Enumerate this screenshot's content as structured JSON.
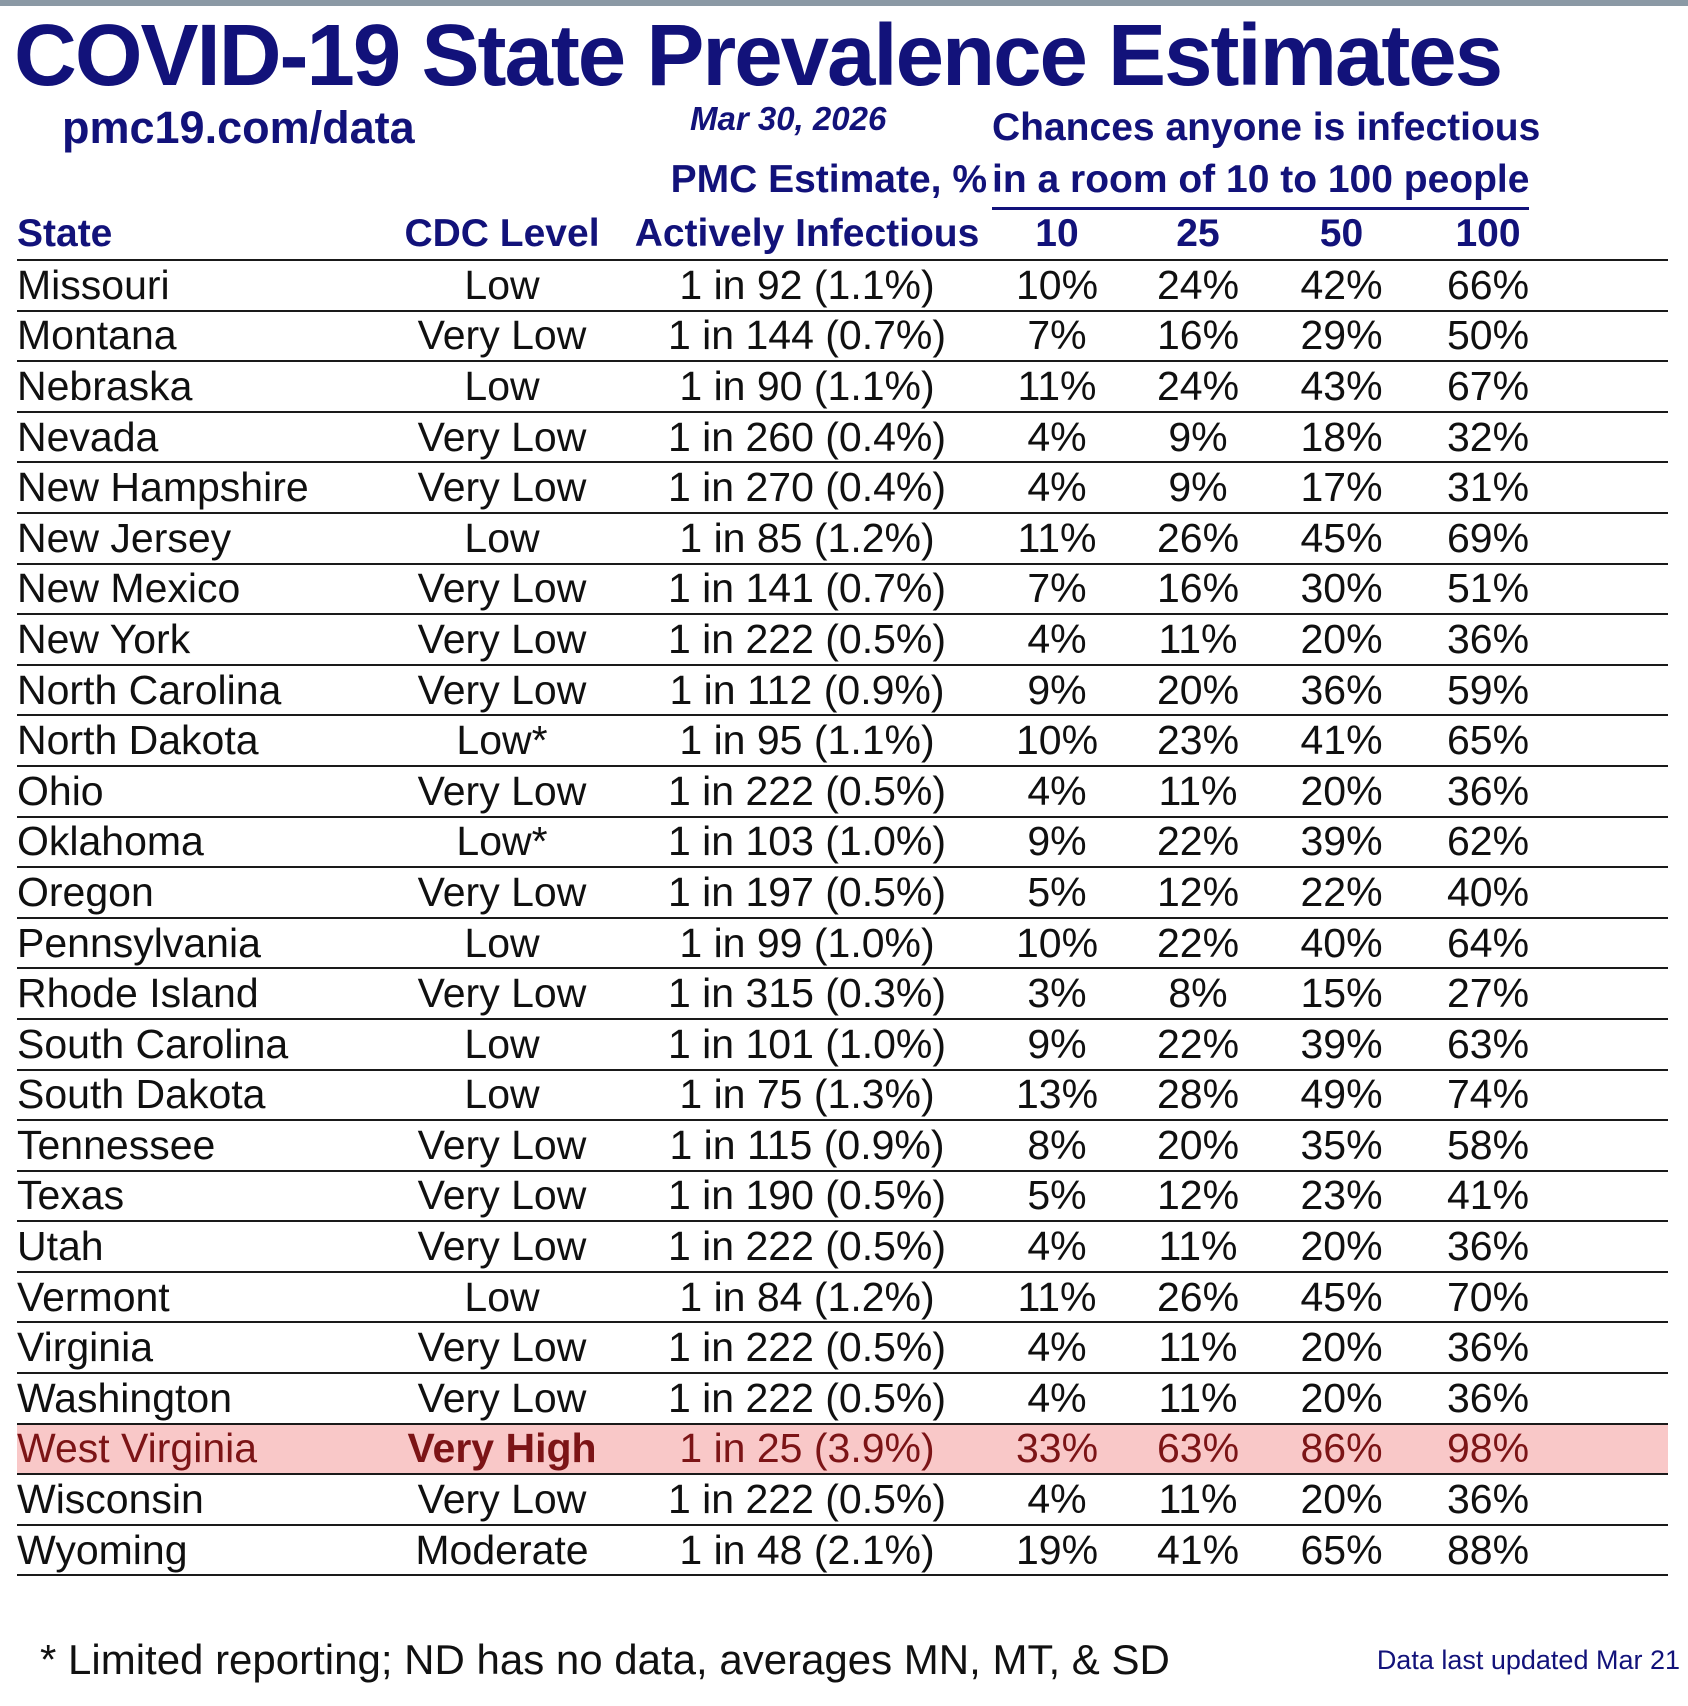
{
  "page": {
    "title": "COVID-19 State Prevalence Estimates",
    "source": "pmc19.com/data",
    "date": "Mar 30, 2026",
    "footnote": "* Limited reporting; ND has no data, averages MN, MT, & SD",
    "last_updated": "Data last updated Mar 21"
  },
  "header": {
    "chances_line1": "Chances anyone is infectious",
    "chances_line2": "in a room of 10 to 100 people",
    "pmc_line1": "PMC Estimate, %",
    "pmc_line2": "Actively Infectious",
    "col_state": "State",
    "col_cdc": "CDC Level",
    "room_sizes": [
      "10",
      "25",
      "50",
      "100"
    ]
  },
  "colors": {
    "navy_text": "#12127a",
    "body_text": "#101010",
    "row_line": "#1a1a1a",
    "highlight_background": "#f9c8c8",
    "highlight_text": "#7c1416",
    "top_bar": "#8b99a5"
  },
  "chart_data": {
    "type": "table",
    "title": "COVID-19 State Prevalence Estimates",
    "columns": [
      "State",
      "CDC Level",
      "PMC Estimate, % Actively Infectious",
      "10",
      "25",
      "50",
      "100"
    ],
    "rows": [
      {
        "state": "Missouri",
        "cdc": "Low",
        "estimate": "1 in 92 (1.1%)",
        "p10": "10%",
        "p25": "24%",
        "p50": "42%",
        "p100": "66%",
        "highlight": false
      },
      {
        "state": "Montana",
        "cdc": "Very Low",
        "estimate": "1 in 144 (0.7%)",
        "p10": "7%",
        "p25": "16%",
        "p50": "29%",
        "p100": "50%",
        "highlight": false
      },
      {
        "state": "Nebraska",
        "cdc": "Low",
        "estimate": "1 in 90 (1.1%)",
        "p10": "11%",
        "p25": "24%",
        "p50": "43%",
        "p100": "67%",
        "highlight": false
      },
      {
        "state": "Nevada",
        "cdc": "Very Low",
        "estimate": "1 in 260 (0.4%)",
        "p10": "4%",
        "p25": "9%",
        "p50": "18%",
        "p100": "32%",
        "highlight": false
      },
      {
        "state": "New Hampshire",
        "cdc": "Very Low",
        "estimate": "1 in 270 (0.4%)",
        "p10": "4%",
        "p25": "9%",
        "p50": "17%",
        "p100": "31%",
        "highlight": false
      },
      {
        "state": "New Jersey",
        "cdc": "Low",
        "estimate": "1 in 85 (1.2%)",
        "p10": "11%",
        "p25": "26%",
        "p50": "45%",
        "p100": "69%",
        "highlight": false
      },
      {
        "state": "New Mexico",
        "cdc": "Very Low",
        "estimate": "1 in 141 (0.7%)",
        "p10": "7%",
        "p25": "16%",
        "p50": "30%",
        "p100": "51%",
        "highlight": false
      },
      {
        "state": "New York",
        "cdc": "Very Low",
        "estimate": "1 in 222 (0.5%)",
        "p10": "4%",
        "p25": "11%",
        "p50": "20%",
        "p100": "36%",
        "highlight": false
      },
      {
        "state": "North Carolina",
        "cdc": "Very Low",
        "estimate": "1 in 112 (0.9%)",
        "p10": "9%",
        "p25": "20%",
        "p50": "36%",
        "p100": "59%",
        "highlight": false
      },
      {
        "state": "North Dakota",
        "cdc": "Low*",
        "estimate": "1 in 95 (1.1%)",
        "p10": "10%",
        "p25": "23%",
        "p50": "41%",
        "p100": "65%",
        "highlight": false
      },
      {
        "state": "Ohio",
        "cdc": "Very Low",
        "estimate": "1 in 222 (0.5%)",
        "p10": "4%",
        "p25": "11%",
        "p50": "20%",
        "p100": "36%",
        "highlight": false
      },
      {
        "state": "Oklahoma",
        "cdc": "Low*",
        "estimate": "1 in 103 (1.0%)",
        "p10": "9%",
        "p25": "22%",
        "p50": "39%",
        "p100": "62%",
        "highlight": false
      },
      {
        "state": "Oregon",
        "cdc": "Very Low",
        "estimate": "1 in 197 (0.5%)",
        "p10": "5%",
        "p25": "12%",
        "p50": "22%",
        "p100": "40%",
        "highlight": false
      },
      {
        "state": "Pennsylvania",
        "cdc": "Low",
        "estimate": "1 in 99 (1.0%)",
        "p10": "10%",
        "p25": "22%",
        "p50": "40%",
        "p100": "64%",
        "highlight": false
      },
      {
        "state": "Rhode Island",
        "cdc": "Very Low",
        "estimate": "1 in 315 (0.3%)",
        "p10": "3%",
        "p25": "8%",
        "p50": "15%",
        "p100": "27%",
        "highlight": false
      },
      {
        "state": "South Carolina",
        "cdc": "Low",
        "estimate": "1 in 101 (1.0%)",
        "p10": "9%",
        "p25": "22%",
        "p50": "39%",
        "p100": "63%",
        "highlight": false
      },
      {
        "state": "South Dakota",
        "cdc": "Low",
        "estimate": "1 in 75 (1.3%)",
        "p10": "13%",
        "p25": "28%",
        "p50": "49%",
        "p100": "74%",
        "highlight": false
      },
      {
        "state": "Tennessee",
        "cdc": "Very Low",
        "estimate": "1 in 115 (0.9%)",
        "p10": "8%",
        "p25": "20%",
        "p50": "35%",
        "p100": "58%",
        "highlight": false
      },
      {
        "state": "Texas",
        "cdc": "Very Low",
        "estimate": "1 in 190 (0.5%)",
        "p10": "5%",
        "p25": "12%",
        "p50": "23%",
        "p100": "41%",
        "highlight": false
      },
      {
        "state": "Utah",
        "cdc": "Very Low",
        "estimate": "1 in 222 (0.5%)",
        "p10": "4%",
        "p25": "11%",
        "p50": "20%",
        "p100": "36%",
        "highlight": false
      },
      {
        "state": "Vermont",
        "cdc": "Low",
        "estimate": "1 in 84 (1.2%)",
        "p10": "11%",
        "p25": "26%",
        "p50": "45%",
        "p100": "70%",
        "highlight": false
      },
      {
        "state": "Virginia",
        "cdc": "Very Low",
        "estimate": "1 in 222 (0.5%)",
        "p10": "4%",
        "p25": "11%",
        "p50": "20%",
        "p100": "36%",
        "highlight": false
      },
      {
        "state": "Washington",
        "cdc": "Very Low",
        "estimate": "1 in 222 (0.5%)",
        "p10": "4%",
        "p25": "11%",
        "p50": "20%",
        "p100": "36%",
        "highlight": false
      },
      {
        "state": "West Virginia",
        "cdc": "Very High",
        "estimate": "1 in 25 (3.9%)",
        "p10": "33%",
        "p25": "63%",
        "p50": "86%",
        "p100": "98%",
        "highlight": true
      },
      {
        "state": "Wisconsin",
        "cdc": "Very Low",
        "estimate": "1 in 222 (0.5%)",
        "p10": "4%",
        "p25": "11%",
        "p50": "20%",
        "p100": "36%",
        "highlight": false
      },
      {
        "state": "Wyoming",
        "cdc": "Moderate",
        "estimate": "1 in 48 (2.1%)",
        "p10": "19%",
        "p25": "41%",
        "p50": "65%",
        "p100": "88%",
        "highlight": false
      }
    ]
  }
}
